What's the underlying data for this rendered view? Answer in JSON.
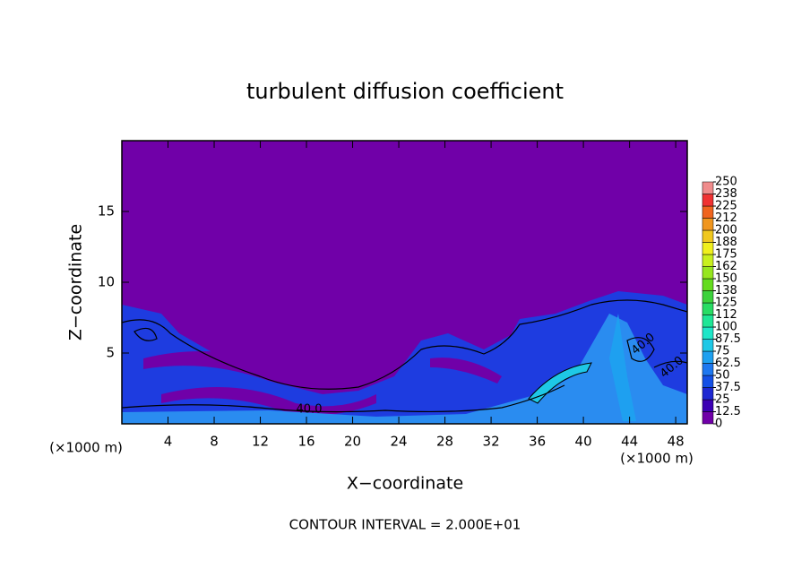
{
  "chart_data": {
    "type": "contour",
    "title": "turbulent diffusion coefficient",
    "x_label": "X−coordinate",
    "y_label": "Z−coordinate",
    "x_unit": "(×1000 m)",
    "y_unit": "(×1000 m)",
    "xlim": [
      0,
      49
    ],
    "ylim": [
      0,
      20
    ],
    "xticks": [
      4,
      8,
      12,
      16,
      20,
      24,
      28,
      32,
      36,
      40,
      44,
      48
    ],
    "yticks": [
      5,
      10,
      15
    ],
    "contour_labels": [
      "40.0",
      "40.0",
      "40.0"
    ],
    "footer": "CONTOUR INTERVAL = 2.000E+01",
    "colorbar": {
      "clim": [
        0,
        250
      ],
      "ticks": [
        0,
        12.5,
        25,
        37.5,
        50,
        62.5,
        75,
        87.5,
        100,
        {
          "value": 112.5,
          "label": "112"
        },
        125,
        {
          "value": 137.5,
          "label": "138"
        },
        150,
        {
          "value": 162.5,
          "label": "162"
        },
        175,
        {
          "value": 187.5,
          "label": "188"
        },
        200,
        {
          "value": 212.5,
          "label": "212"
        },
        225,
        {
          "value": 237.5,
          "label": "238"
        },
        250
      ],
      "colors": [
        "#7000a8",
        "#3c00b4",
        "#1e28d2",
        "#1450e6",
        "#1e78f0",
        "#1ea0f0",
        "#1ec8e6",
        "#1ee6c8",
        "#1ee696",
        "#28dc64",
        "#3cd23c",
        "#64dc1e",
        "#96e61e",
        "#c8f01e",
        "#f0f01e",
        "#f0c81e",
        "#f0961e",
        "#f0641e",
        "#f03232",
        "#f08c8c"
      ]
    }
  }
}
